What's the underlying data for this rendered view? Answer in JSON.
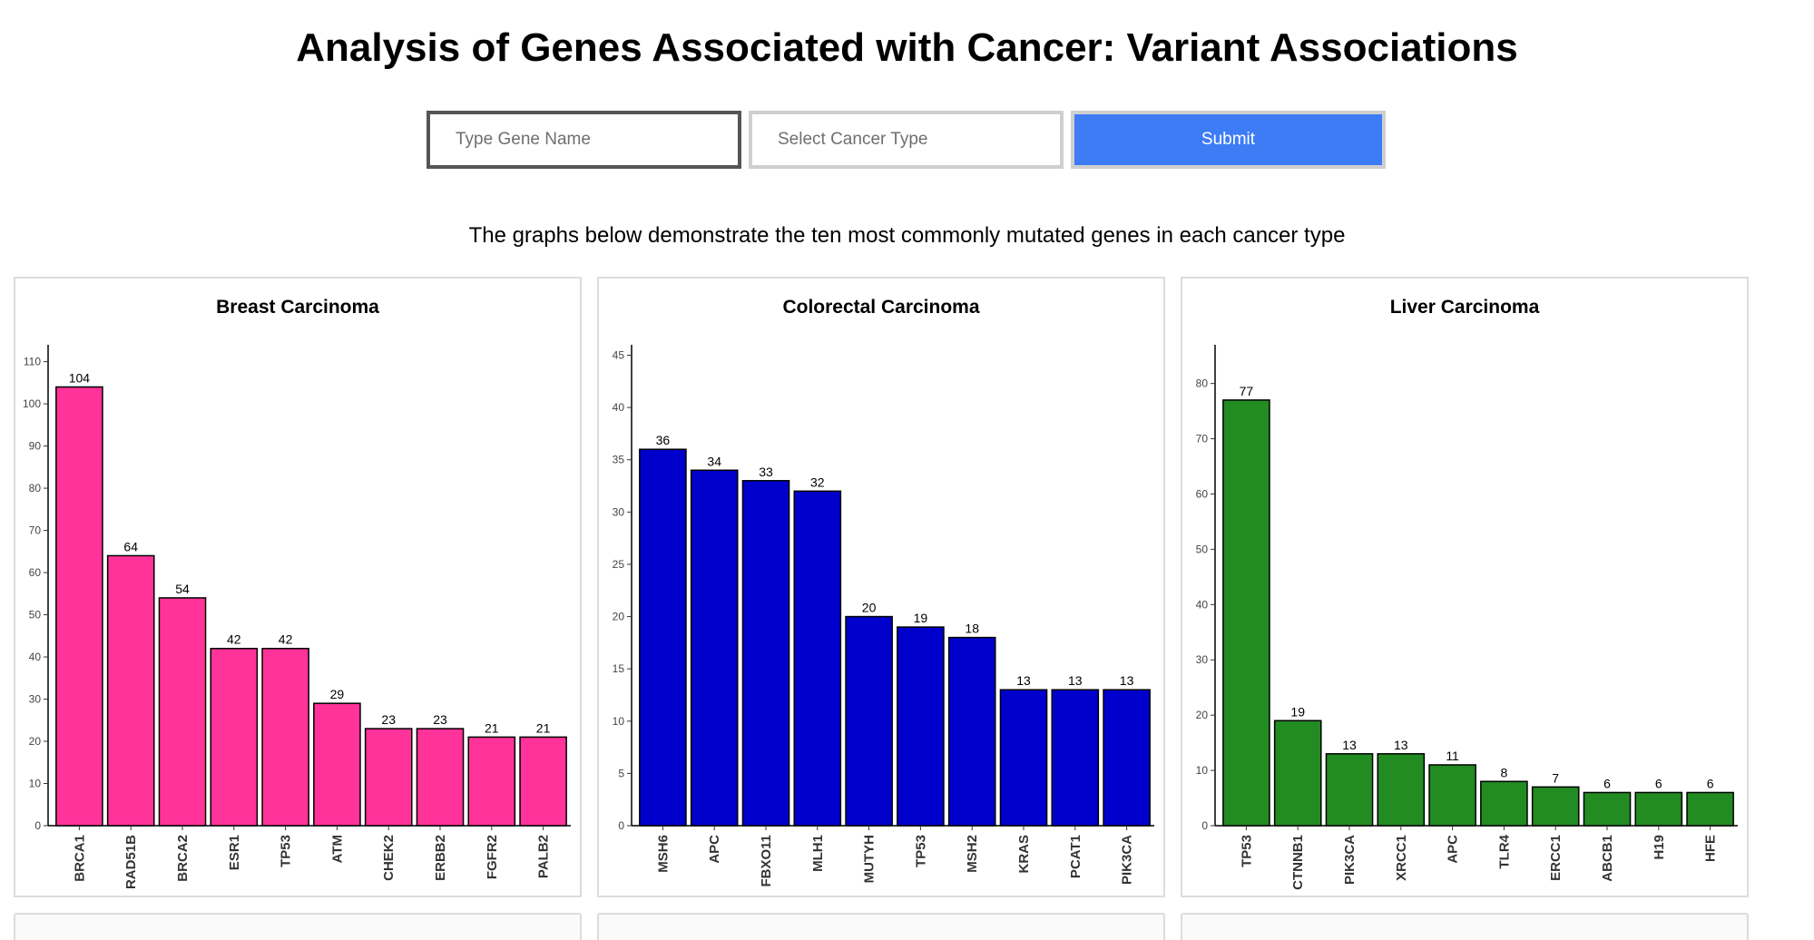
{
  "page": {
    "title": "Analysis of Genes Associated with Cancer: Variant Associations",
    "subtitle": "The graphs below demonstrate the ten most commonly mutated genes in each cancer type"
  },
  "form": {
    "gene_placeholder": "Type Gene Name",
    "cancer_placeholder": "Select Cancer Type",
    "submit_label": "Submit"
  },
  "chart_data": [
    {
      "type": "bar",
      "title": "Breast Carcinoma",
      "categories": [
        "BRCA1",
        "RAD51B",
        "BRCA2",
        "ESR1",
        "TP53",
        "ATM",
        "CHEK2",
        "ERBB2",
        "FGFR2",
        "PALB2"
      ],
      "values": [
        104,
        64,
        54,
        42,
        42,
        29,
        23,
        23,
        21,
        21
      ],
      "ylim": [
        0,
        114
      ],
      "yticks": [
        0,
        10,
        20,
        30,
        40,
        50,
        60,
        70,
        80,
        90,
        100,
        110
      ],
      "color": "#ff3399",
      "xlabel": "",
      "ylabel": "",
      "grid": false
    },
    {
      "type": "bar",
      "title": "Colorectal Carcinoma",
      "categories": [
        "MSH6",
        "APC",
        "FBXO11",
        "MLH1",
        "MUTYH",
        "TP53",
        "MSH2",
        "KRAS",
        "PCAT1",
        "PIK3CA"
      ],
      "values": [
        36,
        34,
        33,
        32,
        20,
        19,
        18,
        13,
        13,
        13
      ],
      "ylim": [
        0,
        46
      ],
      "yticks": [
        0,
        5,
        10,
        15,
        20,
        25,
        30,
        35,
        40,
        45
      ],
      "color": "#0000cc",
      "xlabel": "",
      "ylabel": "",
      "grid": false
    },
    {
      "type": "bar",
      "title": "Liver Carcinoma",
      "categories": [
        "TP53",
        "CTNNB1",
        "PIK3CA",
        "XRCC1",
        "APC",
        "TLR4",
        "ERCC1",
        "ABCB1",
        "H19",
        "HFE"
      ],
      "values": [
        77,
        19,
        13,
        13,
        11,
        8,
        7,
        6,
        6,
        6
      ],
      "ylim": [
        0,
        87
      ],
      "yticks": [
        0,
        10,
        20,
        30,
        40,
        50,
        60,
        70,
        80
      ],
      "color": "#228b22",
      "xlabel": "",
      "ylabel": "",
      "grid": false
    }
  ]
}
